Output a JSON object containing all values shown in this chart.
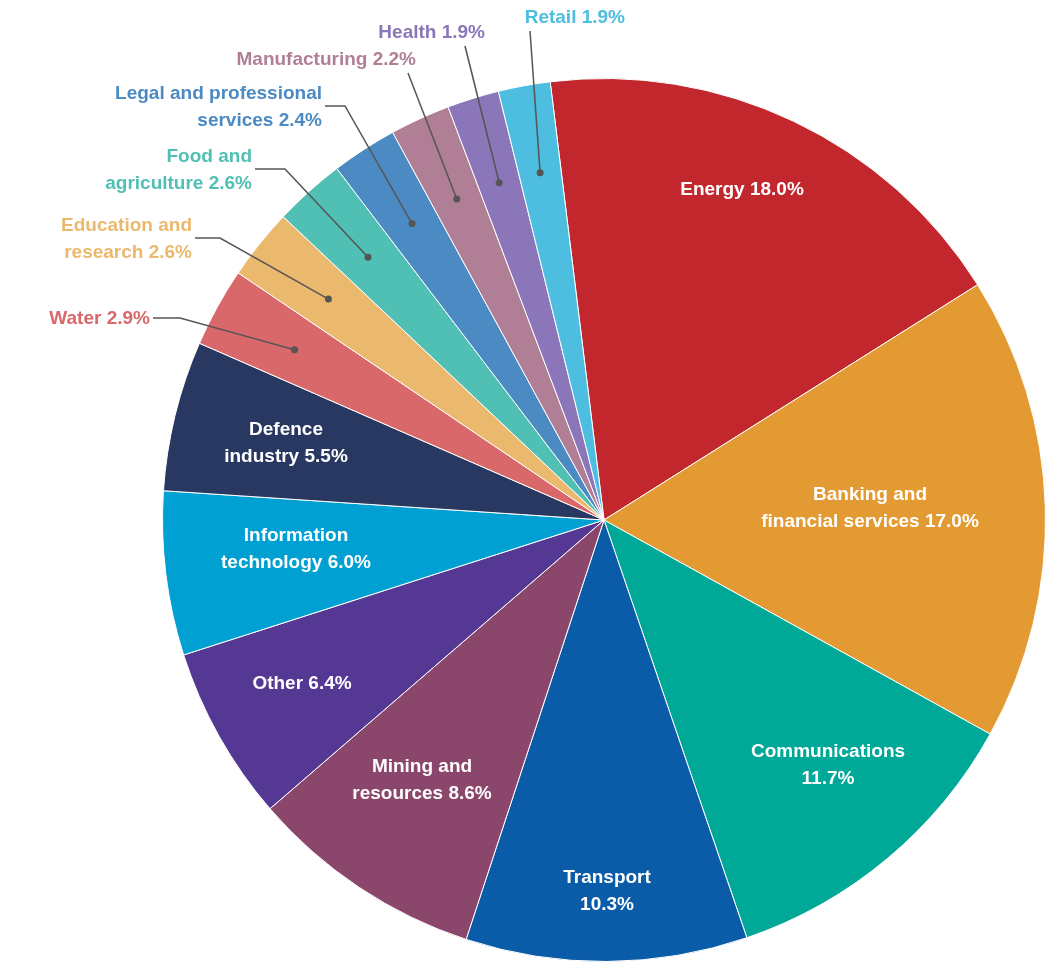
{
  "chart_data": {
    "type": "pie",
    "legend": false,
    "categories": [
      "Energy",
      "Banking and financial services",
      "Communications",
      "Transport",
      "Mining and resources",
      "Other",
      "Information technology",
      "Defence industry",
      "Water",
      "Education and research",
      "Food and agriculture",
      "Legal and professional services",
      "Manufacturing",
      "Health",
      "Retail"
    ],
    "values": [
      18.0,
      17.0,
      11.7,
      10.3,
      8.6,
      6.4,
      6.0,
      5.5,
      2.9,
      2.6,
      2.6,
      2.4,
      2.2,
      1.9,
      1.9
    ],
    "value_labels": [
      "18.0%",
      "17.0%",
      "11.7%",
      "10.3%",
      "8.6%",
      "6.4%",
      "6.0%",
      "5.5%",
      "2.9%",
      "2.6%",
      "2.6%",
      "2.4%",
      "2.2%",
      "1.9%",
      "1.9%"
    ],
    "colors": [
      "#c1272d",
      "#e39a32",
      "#00a898",
      "#0a5ca8",
      "#8b476b",
      "#553894",
      "#00a0d2",
      "#283861",
      "#d9686a",
      "#ebb96e",
      "#4fc0b3",
      "#4c8ac4",
      "#b07f96",
      "#8a76b8",
      "#4dbde0"
    ]
  }
}
